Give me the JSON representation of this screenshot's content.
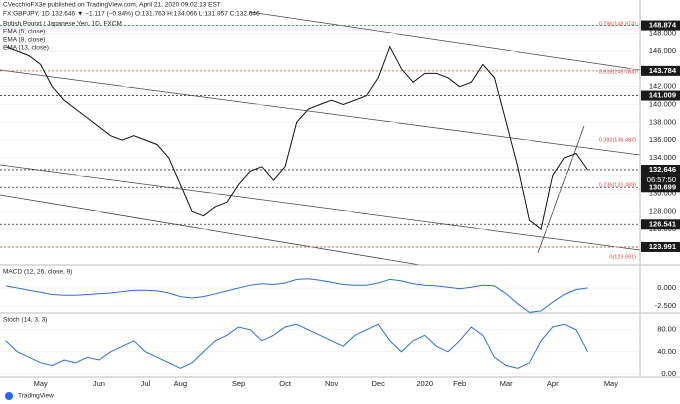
{
  "publisher": "CVecchioFX3e published on TradingView.com, April 21, 2020 09:02:13 EST",
  "footer": "TradingView",
  "chart_data": [
    {
      "type": "line",
      "title": "British Pound / Japanese Yen, 1D, FXCM",
      "subtitle": "FX:GBPJPY, 1D 132.646 ▼ −1.117 (−0.84%) O:131.763 H:134.066 L:131.957 C:132.646",
      "annotations": [
        "EMA (5, close)",
        "EMA (8, close)",
        "EMA (13, close)"
      ],
      "fib_labels": [
        "0.786(148.874)",
        "0.618(143.784)",
        "0.382(136.487)",
        "0.236(131.489)",
        "0(123.991)"
      ],
      "countdown": "06:57:50",
      "categories": [
        null,
        null,
        null,
        "May",
        null,
        null,
        null,
        null,
        "Jun",
        null,
        null,
        null,
        "Jul",
        null,
        null,
        "Aug",
        null,
        null,
        null,
        null,
        "Sep",
        null,
        null,
        null,
        "Oct",
        null,
        null,
        null,
        "Nov",
        null,
        null,
        null,
        "Dec",
        null,
        null,
        null,
        "2020",
        null,
        null,
        "Feb",
        null,
        null,
        null,
        "Mar",
        null,
        null,
        null,
        "Apr",
        null,
        null,
        null,
        null,
        "May",
        null,
        null
      ],
      "values": [
        146.5,
        146,
        145.5,
        144.5,
        142,
        140.5,
        139.5,
        138.5,
        137.5,
        136.5,
        136,
        136.5,
        136,
        135.5,
        134,
        131,
        128,
        127.5,
        128.5,
        129,
        131,
        132.5,
        133,
        131.5,
        133,
        138,
        139.5,
        140,
        140.5,
        140,
        140.5,
        141,
        143,
        146.5,
        144,
        142.5,
        143.5,
        143.5,
        143,
        142,
        142.5,
        144.5,
        143,
        138,
        133,
        127,
        126,
        132,
        134,
        134.5,
        132.646,
        null,
        null,
        null,
        null
      ],
      "color": "#111111",
      "ylim": [
        122.3,
        150.4
      ],
      "yticks": [
        {
          "value": 148,
          "label": "148.000"
        },
        {
          "value": 146,
          "label": "146.000"
        },
        {
          "value": 144,
          "label": "144.000"
        },
        {
          "value": 142,
          "label": "142.000"
        },
        {
          "value": 140,
          "label": "140.000"
        },
        {
          "value": 138,
          "label": "138.000"
        },
        {
          "value": 136,
          "label": "136.000"
        },
        {
          "value": 134,
          "label": "134.000"
        },
        {
          "value": 132,
          "label": "132.000"
        },
        {
          "value": 130,
          "label": "130.000"
        },
        {
          "value": 128,
          "label": "128.000"
        },
        {
          "value": 126,
          "label": "126.000"
        },
        {
          "value": 124,
          "label": "124.000"
        }
      ],
      "levels": [
        {
          "value": 148.874,
          "color": "#e04040"
        },
        {
          "value": 143.784,
          "color": "#e04040"
        },
        {
          "value": 141.009,
          "color": "#333333"
        },
        {
          "value": 132.646,
          "color": "#333333"
        },
        {
          "value": 130.699,
          "color": "#333333"
        },
        {
          "value": 126.541,
          "color": "#333333"
        },
        {
          "value": 123.991,
          "color": "#e04040"
        }
      ],
      "grid": true
    },
    {
      "type": "line",
      "title": "MACD (12, 26, close, 9)",
      "values": [
        0.3,
        0,
        -0.3,
        -0.6,
        -0.9,
        -1,
        -1,
        -0.9,
        -0.8,
        -0.7,
        -0.5,
        -0.3,
        -0.3,
        -0.4,
        -0.7,
        -1.2,
        -1.4,
        -1.2,
        -0.8,
        -0.4,
        0,
        0.4,
        0.6,
        0.5,
        0.7,
        1.2,
        1.3,
        1.1,
        0.8,
        0.5,
        0.4,
        0.4,
        0.7,
        1.2,
        1,
        0.6,
        0.4,
        0.3,
        0.1,
        -0.1,
        0.1,
        0.4,
        0.3,
        -0.8,
        -2.2,
        -3.4,
        -3.2,
        -2,
        -0.9,
        -0.2,
        0
      ],
      "color": "#2f6fd6",
      "ylim": [
        -3.35,
        2.8
      ],
      "yticks": [
        {
          "value": 0,
          "label": "0.000"
        },
        {
          "value": -2.5,
          "label": "-2.500"
        }
      ],
      "grid": true
    },
    {
      "type": "line",
      "title": "Stoch (14, 3, 3)",
      "values": [
        60,
        40,
        30,
        20,
        15,
        25,
        20,
        30,
        25,
        40,
        50,
        60,
        40,
        30,
        20,
        10,
        20,
        40,
        60,
        70,
        85,
        80,
        60,
        70,
        85,
        90,
        80,
        70,
        60,
        50,
        70,
        80,
        90,
        60,
        40,
        60,
        70,
        50,
        40,
        60,
        85,
        70,
        30,
        15,
        10,
        20,
        60,
        85,
        90,
        80,
        40
      ],
      "color": "#2f6fd6",
      "ylim": [
        -4,
        105
      ],
      "yticks": [
        {
          "value": 80,
          "label": "80.00"
        },
        {
          "value": 40,
          "label": "40.00"
        },
        {
          "value": 0,
          "label": "0.00"
        }
      ],
      "grid": true
    }
  ]
}
